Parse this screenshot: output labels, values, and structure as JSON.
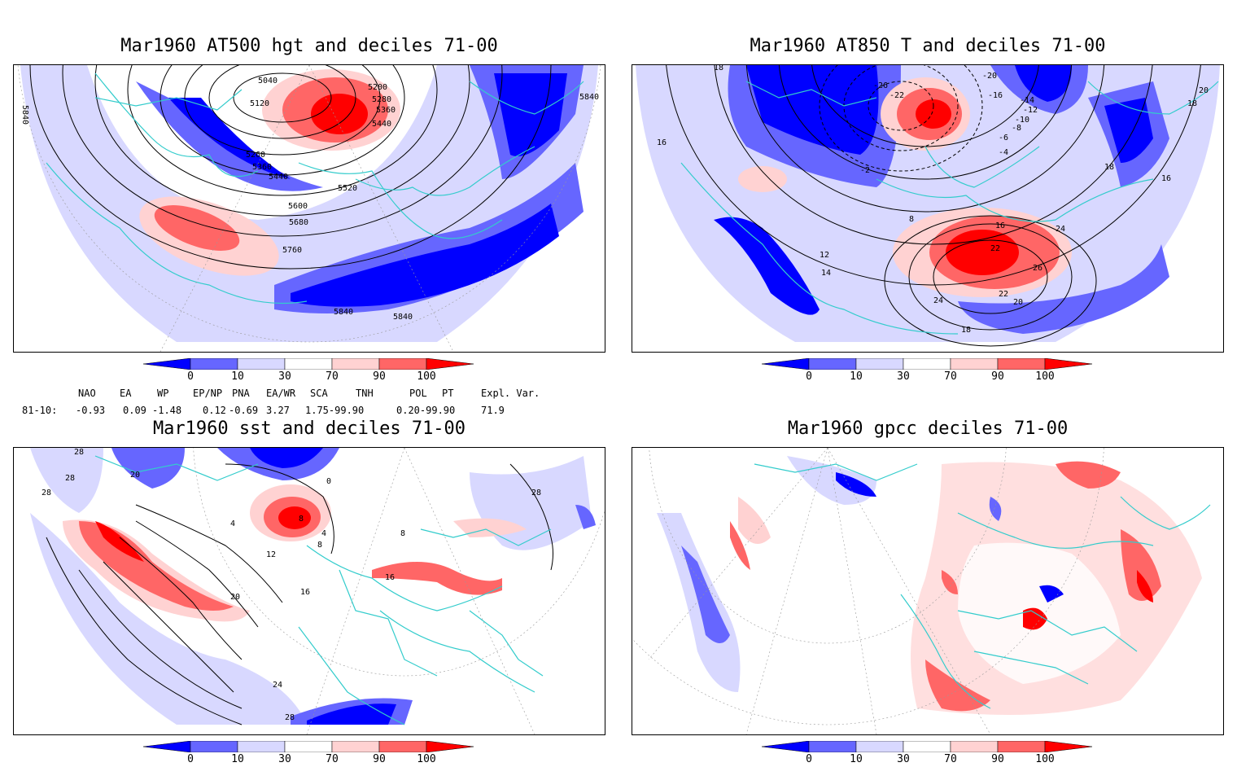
{
  "panels": [
    {
      "title": "Mar1960 AT500 hgt and deciles 71-00",
      "labels": [
        "5040",
        "5120",
        "5200",
        "5280",
        "5360",
        "5440",
        "5260",
        "5360",
        "5440",
        "5520",
        "5600",
        "5680",
        "5760",
        "5840",
        "5840",
        "5840",
        "5840"
      ]
    },
    {
      "title": "Mar1960 AT850 T and deciles 71-00",
      "labels": [
        "18",
        "-26",
        "-20",
        "-22",
        "-16",
        "-14",
        "-12",
        "-10",
        "-8",
        "-6",
        "-4",
        "-2",
        "20",
        "18",
        "16",
        "16",
        "18",
        "8",
        "12",
        "14",
        "16",
        "22",
        "24",
        "26",
        "22",
        "20",
        "24",
        "18"
      ]
    },
    {
      "title": "Mar1960 sst and deciles 71-00",
      "labels": [
        "28",
        "28",
        "28",
        "20",
        "0",
        "4",
        "8",
        "4",
        "8",
        "8",
        "12",
        "16",
        "16",
        "20",
        "24",
        "28",
        "28"
      ]
    },
    {
      "title": "Mar1960 gpcc deciles 71-00",
      "labels": []
    }
  ],
  "colorbar": {
    "ticks": [
      "0",
      "10",
      "30",
      "70",
      "90",
      "100"
    ],
    "colors": [
      "#0000ff",
      "#6666ff",
      "#d8d8ff",
      "#ffffff",
      "#ffd2d2",
      "#ff6666",
      "#ff0000"
    ]
  },
  "indices": {
    "headers": [
      "NAO",
      "EA",
      "WP",
      "EP/NP",
      "PNA",
      "EA/WR",
      "SCA",
      "TNH",
      "POL",
      "PT",
      "Expl. Var."
    ],
    "row_label": "81-10:",
    "values": [
      "-0.93",
      "0.09",
      "-1.48",
      "0.12",
      "-0.69",
      "3.27",
      "1.75-99.90",
      "",
      "0.20-99.90",
      "",
      "71.9"
    ]
  }
}
